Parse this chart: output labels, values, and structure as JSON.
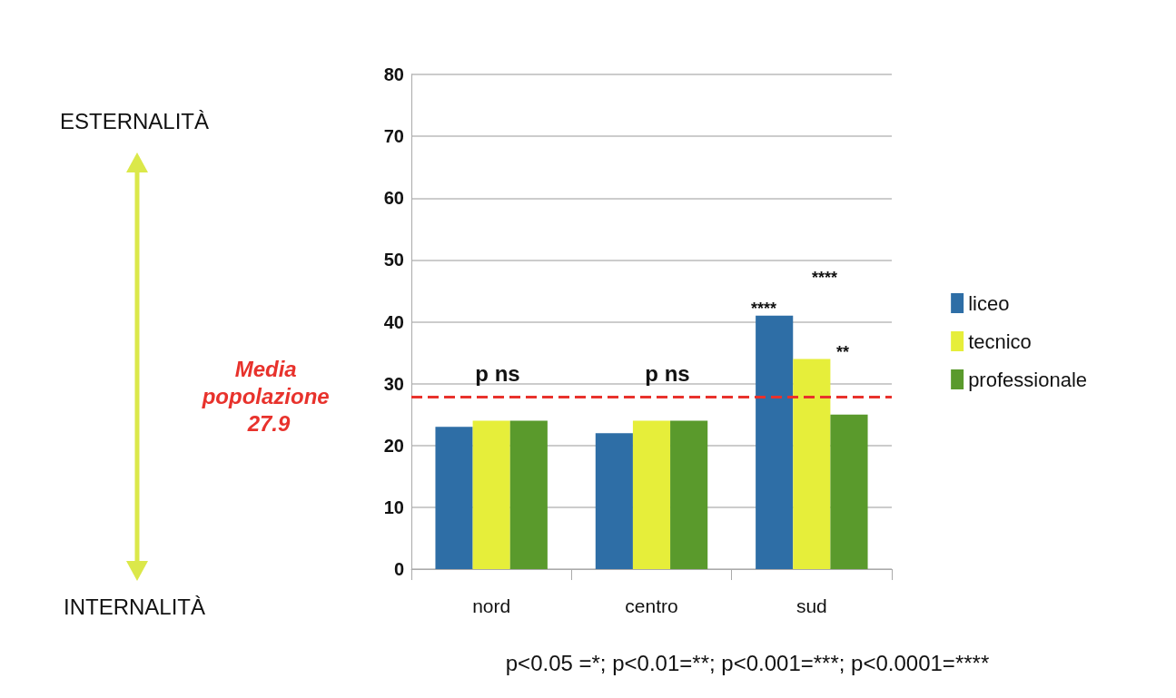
{
  "chart_data": {
    "type": "bar",
    "categories": [
      "nord",
      "centro",
      "sud"
    ],
    "series": [
      {
        "name": "liceo",
        "color": "#2e6ea6",
        "values": [
          23,
          22,
          41
        ]
      },
      {
        "name": "tecnico",
        "color": "#e6ee3a",
        "values": [
          24,
          24,
          34
        ]
      },
      {
        "name": "professionale",
        "color": "#5a9a2c",
        "values": [
          24,
          24,
          25
        ]
      }
    ],
    "ylim": [
      0,
      80
    ],
    "yticks": [
      0,
      10,
      20,
      30,
      40,
      50,
      60,
      70,
      80
    ],
    "grid": "y",
    "legend": "right",
    "ref_lines": [
      {
        "axis": "y",
        "value": 27.9,
        "label": "Media popolazione 27.9",
        "color": "#e8322c",
        "line_style": "dashed"
      }
    ],
    "annotations": [
      "ESTERNALITÀ",
      "INTERNALITÀ",
      "p<0.05 =*; p<0.01=**; p<0.001=***; p<0.0001=****",
      "p ns",
      "p ns",
      "****",
      "****",
      "**"
    ]
  }
}
